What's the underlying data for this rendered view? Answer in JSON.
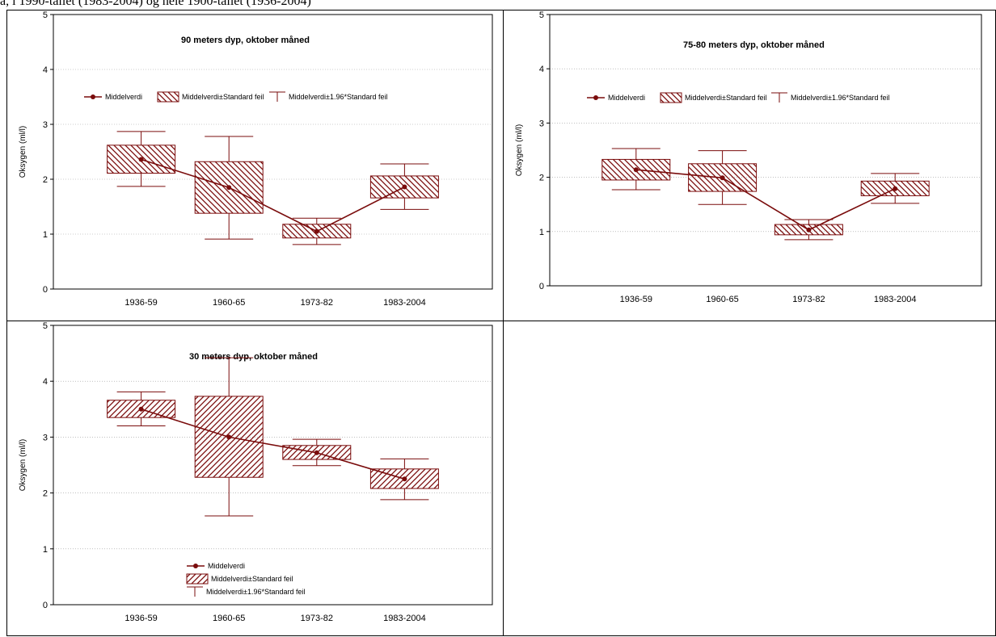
{
  "page": {
    "caption": "a, i 1990-tallet (1983-2004) og hele 1900-tallet (1936-2004)"
  },
  "style": {
    "series_color": "#7a0c0c",
    "axis_color": "#000000",
    "grid_color": "#999999"
  },
  "chart_data": [
    {
      "type": "box",
      "title": "90 meters dyp, oktober måned",
      "xlabel": "",
      "ylabel": "Oksygen (ml/l)",
      "ylim": [
        0,
        5
      ],
      "yticks": [
        "0",
        "1",
        "2",
        "3",
        "4",
        "5"
      ],
      "categories": [
        "1936-59",
        "1960-65",
        "1973-82",
        "1983-2004"
      ],
      "mean": [
        2.36,
        1.85,
        1.05,
        1.86
      ],
      "se_low": [
        2.11,
        1.38,
        0.93,
        1.66
      ],
      "se_high": [
        2.62,
        2.32,
        1.18,
        2.06
      ],
      "ci_low": [
        1.87,
        0.91,
        0.81,
        1.45
      ],
      "ci_high": [
        2.87,
        2.78,
        1.29,
        2.28
      ],
      "hatch": "backslash",
      "legend": [
        "Middelverdi",
        "Middelverdi±Standard feil",
        "Middelverdi±1.96*Standard feil"
      ],
      "legend_layout": "row"
    },
    {
      "type": "box",
      "title": "75-80 meters dyp, oktober måned",
      "xlabel": "",
      "ylabel": "Oksygen (ml/l)",
      "ylim": [
        0,
        5
      ],
      "yticks": [
        "0",
        "1",
        "2",
        "3",
        "4",
        "5"
      ],
      "categories": [
        "1936-59",
        "1960-65",
        "1973-82",
        "1983-2004"
      ],
      "mean": [
        2.14,
        1.99,
        1.03,
        1.79
      ],
      "se_low": [
        1.95,
        1.74,
        0.94,
        1.66
      ],
      "se_high": [
        2.33,
        2.25,
        1.13,
        1.93
      ],
      "ci_low": [
        1.77,
        1.5,
        0.85,
        1.52
      ],
      "ci_high": [
        2.53,
        2.49,
        1.22,
        2.07
      ],
      "hatch": "backslash",
      "legend": [
        "Middelverdi",
        "Middelverdi±Standard feil",
        "Middelverdi±1.96*Standard feil"
      ],
      "legend_layout": "row"
    },
    {
      "type": "box",
      "title": "30 meters dyp, oktober måned",
      "xlabel": "",
      "ylabel": "Oksygen (ml/l)",
      "ylim": [
        0,
        5
      ],
      "yticks": [
        "0",
        "1",
        "2",
        "3",
        "4",
        "5"
      ],
      "categories": [
        "1936-59",
        "1960-65",
        "1973-82",
        "1983-2004"
      ],
      "mean": [
        3.5,
        3.0,
        2.72,
        2.25
      ],
      "se_low": [
        3.35,
        2.28,
        2.6,
        2.08
      ],
      "se_high": [
        3.66,
        3.73,
        2.85,
        2.43
      ],
      "ci_low": [
        3.2,
        1.59,
        2.49,
        1.88
      ],
      "ci_high": [
        3.81,
        4.42,
        2.96,
        2.61
      ],
      "hatch": "slash",
      "legend": [
        "Middelverdi",
        "Middelverdi±Standard feil",
        "Middelverdi±1.96*Standard feil"
      ],
      "legend_layout": "column"
    }
  ]
}
